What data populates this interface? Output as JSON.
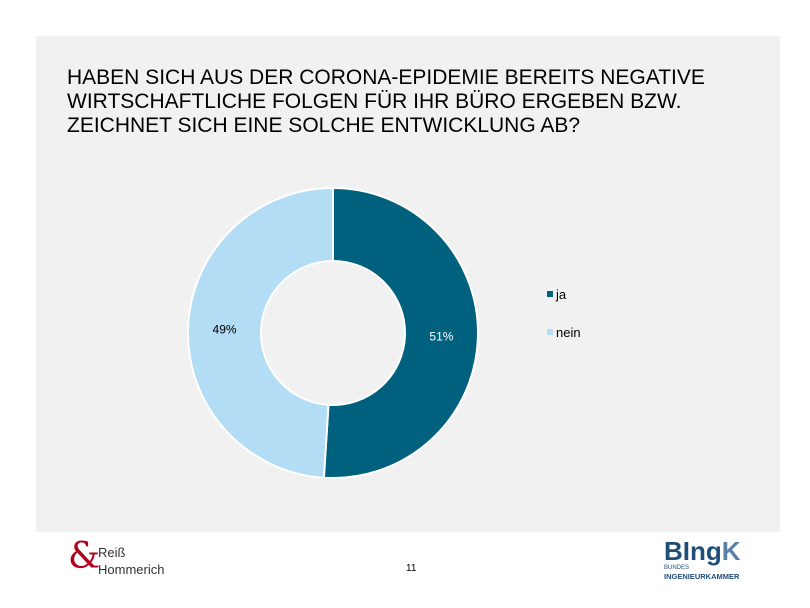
{
  "title": {
    "line1": "HABEN SICH AUS DER CORONA-EPIDEMIE BEREITS NEGATIVE",
    "line2": "WIRTSCHAFTLICHE FOLGEN FÜR IHR BÜRO ERGEBEN BZW.",
    "line3": "ZEICHNET SICH EINE SOLCHE ENTWICKLUNG AB?"
  },
  "chart_data": {
    "type": "pie",
    "title": "HABEN SICH AUS DER CORONA-EPIDEMIE BEREITS NEGATIVE WIRTSCHAFTLICHE FOLGEN FÜR IHR BÜRO ERGEBEN BZW. ZEICHNET SICH EINE SOLCHE ENTWICKLUNG AB?",
    "categories": [
      "ja",
      "nein"
    ],
    "values": [
      51,
      49
    ],
    "labels": [
      "51%",
      "49%"
    ],
    "colors": [
      "#00617f",
      "#b3dcf5"
    ],
    "label_colors": [
      "#ffffff",
      "#000000"
    ],
    "legend_position": "right",
    "hole": true
  },
  "footer": {
    "left_logo_amp": "&",
    "left_logo_line1": "Reiß",
    "left_logo_line2": "Hommerich",
    "page_number": "11",
    "right_logo_main": "BIng",
    "right_logo_k": "K",
    "right_logo_line1": "BUNDES",
    "right_logo_line2": "INGENIEURKAMMER"
  }
}
